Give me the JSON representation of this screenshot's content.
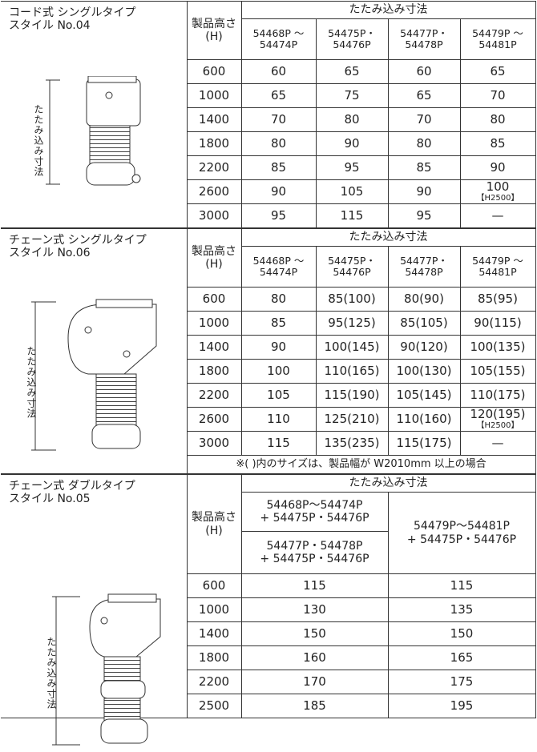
{
  "sections": [
    {
      "title": [
        "コード式 シングルタイプ",
        "スタイル No.04"
      ],
      "dimension_label": "たたみ込み寸法",
      "height_header": [
        "製品高さ",
        "(H)"
      ],
      "group_header": "たたみ込み寸法",
      "columns": [
        [
          "54468P ～",
          "54474P"
        ],
        [
          "54475P・",
          "54476P"
        ],
        [
          "54477P・",
          "54478P"
        ],
        [
          "54479P ～",
          "54481P"
        ]
      ],
      "rows": [
        [
          "600",
          "60",
          "65",
          "60",
          "65"
        ],
        [
          "1000",
          "65",
          "75",
          "65",
          "70"
        ],
        [
          "1400",
          "70",
          "80",
          "70",
          "80"
        ],
        [
          "1800",
          "80",
          "90",
          "80",
          "85"
        ],
        [
          "2200",
          "85",
          "95",
          "85",
          "90"
        ],
        [
          "2600",
          "90",
          "105",
          "90",
          {
            "text": "100",
            "sub": "【H2500】"
          }
        ],
        [
          "3000",
          "95",
          "115",
          "95",
          "—"
        ]
      ]
    },
    {
      "title": [
        "チェーン式 シングルタイプ",
        "スタイル No.06"
      ],
      "dimension_label": "たたみ込み寸法",
      "height_header": [
        "製品高さ",
        "(H)"
      ],
      "group_header": "たたみ込み寸法",
      "columns": [
        [
          "54468P ～",
          "54474P"
        ],
        [
          "54475P・",
          "54476P"
        ],
        [
          "54477P・",
          "54478P"
        ],
        [
          "54479P ～",
          "54481P"
        ]
      ],
      "rows": [
        [
          "600",
          "80",
          "85(100)",
          "80(90)",
          "85(95)"
        ],
        [
          "1000",
          "85",
          "95(125)",
          "85(105)",
          "90(115)"
        ],
        [
          "1400",
          "90",
          "100(145)",
          "90(120)",
          "100(135)"
        ],
        [
          "1800",
          "100",
          "110(165)",
          "100(130)",
          "105(155)"
        ],
        [
          "2200",
          "105",
          "115(190)",
          "105(145)",
          "110(175)"
        ],
        [
          "2600",
          "110",
          "125(210)",
          "110(160)",
          {
            "text": "120(195)",
            "sub": "【H2500】"
          }
        ],
        [
          "3000",
          "115",
          "135(235)",
          "115(175)",
          "—"
        ]
      ],
      "note": "※( )内のサイズは、製品幅が W2010mm 以上の場合"
    },
    {
      "title": [
        "チェーン式 ダブルタイプ",
        "スタイル No.05"
      ],
      "dimension_label": "たたみ込み寸法",
      "height_header": [
        "製品高さ",
        "(H)"
      ],
      "group_header": "たたみ込み寸法",
      "columns_left": [
        [
          "54468P～54474P",
          "+ 54475P・54476P"
        ],
        [
          "54477P・54478P",
          "+ 54475P・54476P"
        ]
      ],
      "column_right": [
        "54479P～54481P",
        "+ 54475P・54476P"
      ],
      "rows": [
        [
          "600",
          "115",
          "115"
        ],
        [
          "1000",
          "130",
          "135"
        ],
        [
          "1400",
          "150",
          "150"
        ],
        [
          "1800",
          "160",
          "165"
        ],
        [
          "2200",
          "170",
          "175"
        ],
        [
          "2500",
          "185",
          "195"
        ]
      ]
    }
  ]
}
